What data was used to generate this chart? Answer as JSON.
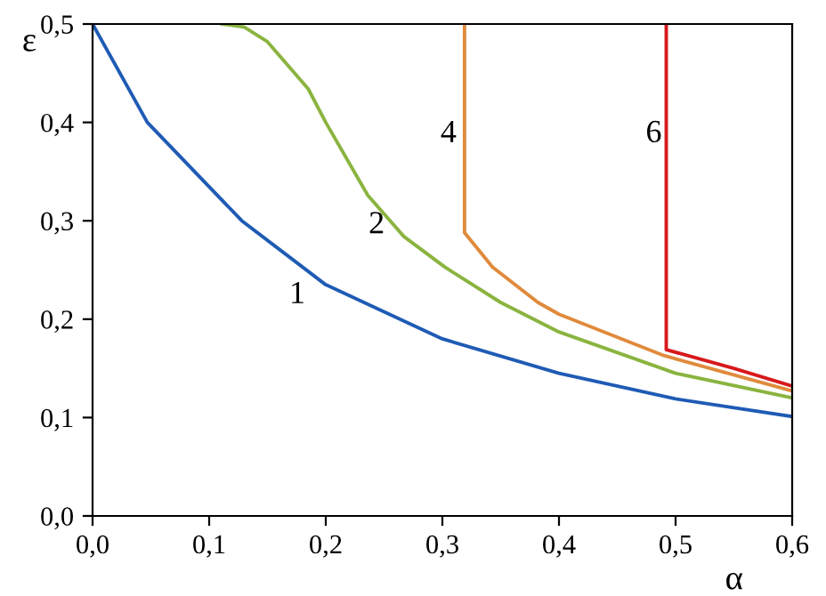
{
  "chart_data": {
    "type": "line",
    "xlabel": "α",
    "ylabel": "ε",
    "xlim": [
      0,
      0.6
    ],
    "ylim": [
      0,
      0.5
    ],
    "xticks": [
      {
        "value": 0,
        "label": "0,0"
      },
      {
        "value": 0.1,
        "label": "0,1"
      },
      {
        "value": 0.2,
        "label": "0,2"
      },
      {
        "value": 0.3,
        "label": "0,3"
      },
      {
        "value": 0.4,
        "label": "0,4"
      },
      {
        "value": 0.5,
        "label": "0,5"
      },
      {
        "value": 0.6,
        "label": "0,6"
      }
    ],
    "yticks": [
      {
        "value": 0,
        "label": "0,0"
      },
      {
        "value": 0.1,
        "label": "0,1"
      },
      {
        "value": 0.2,
        "label": "0,2"
      },
      {
        "value": 0.3,
        "label": "0,3"
      },
      {
        "value": 0.4,
        "label": "0,4"
      },
      {
        "value": 0.5,
        "label": "0,5"
      }
    ],
    "grid": false,
    "legend": false,
    "marker": "none",
    "line_style": "solid",
    "series": [
      {
        "name": "1",
        "color": "#1f5bb5",
        "x": [
          0,
          0.047,
          0.128,
          0.2,
          0.3,
          0.4,
          0.5,
          0.6
        ],
        "values": [
          0.5,
          0.4,
          0.3,
          0.235,
          0.18,
          0.145,
          0.119,
          0.101
        ]
      },
      {
        "name": "2",
        "color": "#8ab43f",
        "x": [
          0.111,
          0.13,
          0.15,
          0.185,
          0.2,
          0.236,
          0.267,
          0.302,
          0.35,
          0.4,
          0.5,
          0.6
        ],
        "values": [
          0.5,
          0.497,
          0.482,
          0.434,
          0.4,
          0.326,
          0.284,
          0.253,
          0.217,
          0.187,
          0.145,
          0.12
        ]
      },
      {
        "name": "4",
        "color": "#e08a3c",
        "x": [
          0.319,
          0.319,
          0.343,
          0.382,
          0.4,
          0.49,
          0.6
        ],
        "values": [
          0.5,
          0.288,
          0.253,
          0.217,
          0.205,
          0.163,
          0.127
        ]
      },
      {
        "name": "6",
        "color": "#d7191c",
        "x": [
          0.492,
          0.492,
          0.55,
          0.6
        ],
        "values": [
          0.5,
          0.169,
          0.15,
          0.132
        ]
      }
    ]
  }
}
